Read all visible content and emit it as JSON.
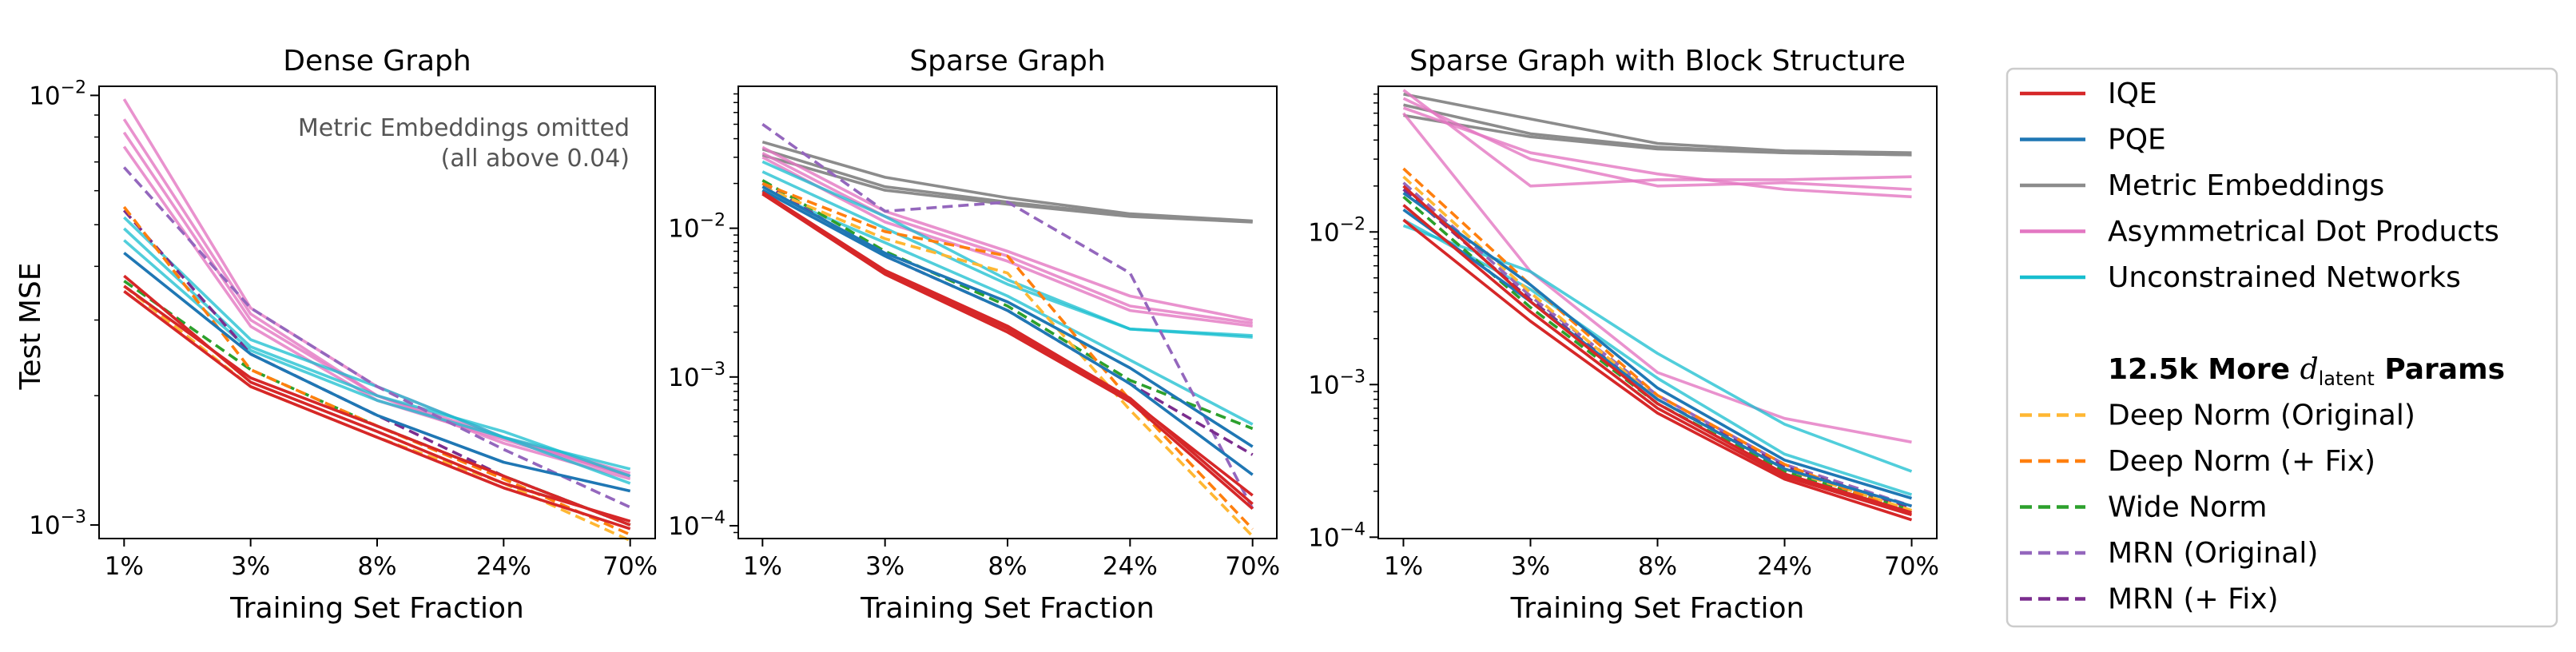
{
  "figure": {
    "xlabel": "Training Set Fraction",
    "ylabel": "Test MSE"
  },
  "colors": {
    "IQE": "#d62728",
    "PQE": "#1f77b4",
    "Metric Embeddings": "#8c8c8c",
    "Asymmetrical Dot Products": "#e377c2",
    "Unconstrained Networks": "#17becf",
    "Deep Norm (Original)": "#ffb733",
    "Deep Norm (+ Fix)": "#ff7f0e",
    "Wide Norm": "#2ca02c",
    "MRN (Original)": "#9467bd",
    "MRN (+ Fix)": "#7b2d8e"
  },
  "legend": {
    "main": [
      {
        "label": "IQE",
        "key": "IQE",
        "dash": false
      },
      {
        "label": "PQE",
        "key": "PQE",
        "dash": false
      },
      {
        "label": "Metric Embeddings",
        "key": "Metric Embeddings",
        "dash": false
      },
      {
        "label": "Asymmetrical Dot Products",
        "key": "Asymmetrical Dot Products",
        "dash": false
      },
      {
        "label": "Unconstrained Networks",
        "key": "Unconstrained Networks",
        "dash": false
      }
    ],
    "section_title_prefix": "12.5k More ",
    "section_title_sym": "d",
    "section_title_sub": "latent",
    "section_title_suffix": " Params",
    "extra": [
      {
        "label": "Deep Norm (Original)",
        "key": "Deep Norm (Original)",
        "dash": true
      },
      {
        "label": "Deep Norm (+ Fix)",
        "key": "Deep Norm (+ Fix)",
        "dash": true
      },
      {
        "label": "Wide Norm",
        "key": "Wide Norm",
        "dash": true
      },
      {
        "label": "MRN (Original)",
        "key": "MRN (Original)",
        "dash": true
      },
      {
        "label": "MRN (+ Fix)",
        "key": "MRN (+ Fix)",
        "dash": true
      }
    ]
  },
  "chart_data": [
    {
      "type": "line",
      "title": "Dense Graph",
      "xlabel": "Training Set Fraction",
      "ylabel": "Test MSE",
      "x_ticks": [
        "1%",
        "3%",
        "8%",
        "24%",
        "70%"
      ],
      "y_scale": "log",
      "ylim": [
        0.00093,
        0.0105
      ],
      "y_ticks": [
        0.001,
        0.01
      ],
      "y_tick_labels": [
        {
          "base": "10",
          "exp": "−3"
        },
        {
          "base": "10",
          "exp": "−2"
        }
      ],
      "annotation": [
        "Metric Embeddings omitted",
        "(all above 0.04)"
      ],
      "series": [
        {
          "group": "IQE",
          "values": [
            0.0035,
            0.0021,
            0.0016,
            0.00122,
            0.00098
          ]
        },
        {
          "group": "IQE",
          "values": [
            0.0038,
            0.00215,
            0.00165,
            0.00125,
            0.00102
          ]
        },
        {
          "group": "IQE",
          "values": [
            0.0036,
            0.0022,
            0.0017,
            0.0013,
            0.001
          ]
        },
        {
          "group": "PQE",
          "values": [
            0.0043,
            0.0025,
            0.0018,
            0.0014,
            0.0012
          ]
        },
        {
          "group": "Asymmetrical Dot Products",
          "values": [
            0.0098,
            0.0032,
            0.0021,
            0.0016,
            0.0013
          ]
        },
        {
          "group": "Asymmetrical Dot Products",
          "values": [
            0.0088,
            0.0031,
            0.002,
            0.00155,
            0.00128
          ]
        },
        {
          "group": "Asymmetrical Dot Products",
          "values": [
            0.0082,
            0.003,
            0.002,
            0.0016,
            0.00132
          ]
        },
        {
          "group": "Asymmetrical Dot Products",
          "values": [
            0.0076,
            0.0029,
            0.00195,
            0.00158,
            0.0013
          ]
        },
        {
          "group": "Unconstrained Networks",
          "values": [
            0.0052,
            0.0027,
            0.0021,
            0.0016,
            0.00135
          ]
        },
        {
          "group": "Unconstrained Networks",
          "values": [
            0.0049,
            0.0026,
            0.002,
            0.00165,
            0.0013
          ]
        },
        {
          "group": "Unconstrained Networks",
          "values": [
            0.0046,
            0.00255,
            0.00195,
            0.0016,
            0.00125
          ]
        },
        {
          "group": "Deep Norm (Original)",
          "values": [
            0.0036,
            0.0021,
            0.0016,
            0.00125,
            0.00092
          ]
        },
        {
          "group": "Deep Norm (+ Fix)",
          "values": [
            0.0055,
            0.0023,
            0.0017,
            0.00128,
            0.00095
          ]
        },
        {
          "group": "Wide Norm",
          "values": [
            0.0037,
            0.0023,
            0.0017,
            0.0013,
            0.001
          ]
        },
        {
          "group": "MRN (Original)",
          "values": [
            0.0068,
            0.0032,
            0.0021,
            0.0015,
            0.0011
          ]
        },
        {
          "group": "MRN (+ Fix)",
          "values": [
            0.0054,
            0.0025,
            0.0018,
            0.0013,
            0.001
          ]
        }
      ]
    },
    {
      "type": "line",
      "title": "Sparse Graph",
      "xlabel": "Training Set Fraction",
      "x_ticks": [
        "1%",
        "3%",
        "8%",
        "24%",
        "70%"
      ],
      "y_scale": "log",
      "ylim": [
        8.2e-05,
        0.09
      ],
      "y_ticks": [
        0.0001,
        0.001,
        0.01
      ],
      "y_tick_labels": [
        {
          "base": "10",
          "exp": "−4"
        },
        {
          "base": "10",
          "exp": "−3"
        },
        {
          "base": "10",
          "exp": "−2"
        }
      ],
      "series": [
        {
          "group": "Metric Embeddings",
          "values": [
            0.038,
            0.022,
            0.016,
            0.0125,
            0.0112
          ]
        },
        {
          "group": "Metric Embeddings",
          "values": [
            0.034,
            0.019,
            0.015,
            0.0122,
            0.0111
          ]
        },
        {
          "group": "Metric Embeddings",
          "values": [
            0.031,
            0.018,
            0.0145,
            0.012,
            0.011
          ]
        },
        {
          "group": "Asymmetrical Dot Products",
          "values": [
            0.035,
            0.013,
            0.007,
            0.0035,
            0.0024
          ]
        },
        {
          "group": "Asymmetrical Dot Products",
          "values": [
            0.032,
            0.012,
            0.0065,
            0.003,
            0.0023
          ]
        },
        {
          "group": "Asymmetrical Dot Products",
          "values": [
            0.03,
            0.011,
            0.006,
            0.0028,
            0.0022
          ]
        },
        {
          "group": "Unconstrained Networks",
          "values": [
            0.028,
            0.012,
            0.0045,
            0.0021,
            0.0019
          ]
        },
        {
          "group": "Unconstrained Networks",
          "values": [
            0.024,
            0.01,
            0.0042,
            0.0021,
            0.00185
          ]
        },
        {
          "group": "Unconstrained Networks",
          "values": [
            0.018,
            0.008,
            0.0035,
            0.0013,
            0.00048
          ]
        },
        {
          "group": "PQE",
          "values": [
            0.019,
            0.0068,
            0.0032,
            0.00115,
            0.00034
          ]
        },
        {
          "group": "PQE",
          "values": [
            0.018,
            0.0065,
            0.0028,
            0.0009,
            0.00022
          ]
        },
        {
          "group": "IQE",
          "values": [
            0.017,
            0.005,
            0.0021,
            0.0007,
            0.00016
          ]
        },
        {
          "group": "IQE",
          "values": [
            0.0175,
            0.0052,
            0.0022,
            0.00072,
            0.00014
          ]
        },
        {
          "group": "IQE",
          "values": [
            0.017,
            0.0049,
            0.002,
            0.00068,
            0.00013
          ]
        },
        {
          "group": "Deep Norm (Original)",
          "values": [
            0.019,
            0.0085,
            0.005,
            0.0006,
            8.5e-05
          ]
        },
        {
          "group": "Deep Norm (+ Fix)",
          "values": [
            0.02,
            0.0095,
            0.0065,
            0.0007,
            9.5e-05
          ]
        },
        {
          "group": "Wide Norm",
          "values": [
            0.021,
            0.007,
            0.003,
            0.00095,
            0.00045
          ]
        },
        {
          "group": "MRN (Original)",
          "values": [
            0.05,
            0.013,
            0.015,
            0.005,
            0.00013
          ]
        },
        {
          "group": "MRN (+ Fix)",
          "values": [
            0.02,
            0.0065,
            0.0028,
            0.0009,
            0.0003
          ]
        }
      ]
    },
    {
      "type": "line",
      "title": "Sparse Graph with Block Structure",
      "xlabel": "Training Set Fraction",
      "x_ticks": [
        "1%",
        "3%",
        "8%",
        "24%",
        "70%"
      ],
      "y_scale": "log",
      "ylim": [
        9.8e-05,
        0.09
      ],
      "y_ticks": [
        0.0001,
        0.001,
        0.01
      ],
      "y_tick_labels": [
        {
          "base": "10",
          "exp": "−4"
        },
        {
          "base": "10",
          "exp": "−3"
        },
        {
          "base": "10",
          "exp": "−2"
        }
      ],
      "series": [
        {
          "group": "Metric Embeddings",
          "values": [
            0.08,
            0.055,
            0.038,
            0.034,
            0.033
          ]
        },
        {
          "group": "Metric Embeddings",
          "values": [
            0.068,
            0.044,
            0.036,
            0.033,
            0.032
          ]
        },
        {
          "group": "Metric Embeddings",
          "values": [
            0.058,
            0.042,
            0.035,
            0.033,
            0.032
          ]
        },
        {
          "group": "Asymmetrical Dot Products",
          "values": [
            0.085,
            0.02,
            0.022,
            0.022,
            0.023
          ]
        },
        {
          "group": "Asymmetrical Dot Products",
          "values": [
            0.075,
            0.03,
            0.02,
            0.021,
            0.019
          ]
        },
        {
          "group": "Asymmetrical Dot Products",
          "values": [
            0.065,
            0.033,
            0.024,
            0.019,
            0.017
          ]
        },
        {
          "group": "Asymmetrical Dot Products",
          "values": [
            0.06,
            0.0055,
            0.0012,
            0.0006,
            0.00042
          ]
        },
        {
          "group": "Unconstrained Networks",
          "values": [
            0.011,
            0.0055,
            0.0016,
            0.00055,
            0.00027
          ]
        },
        {
          "group": "Unconstrained Networks",
          "values": [
            0.012,
            0.0042,
            0.0011,
            0.00035,
            0.00019
          ]
        },
        {
          "group": "PQE",
          "values": [
            0.018,
            0.0045,
            0.00095,
            0.00032,
            0.00018
          ]
        },
        {
          "group": "PQE",
          "values": [
            0.014,
            0.0035,
            0.0008,
            0.00028,
            0.00016
          ]
        },
        {
          "group": "IQE",
          "values": [
            0.012,
            0.0026,
            0.00065,
            0.00024,
            0.00013
          ]
        },
        {
          "group": "IQE",
          "values": [
            0.015,
            0.003,
            0.0007,
            0.00025,
            0.00014
          ]
        },
        {
          "group": "IQE",
          "values": [
            0.02,
            0.0035,
            0.00075,
            0.00026,
            0.000145
          ]
        },
        {
          "group": "Deep Norm (Original)",
          "values": [
            0.023,
            0.004,
            0.0008,
            0.00028,
            0.00015
          ]
        },
        {
          "group": "Deep Norm (+ Fix)",
          "values": [
            0.026,
            0.0045,
            0.00085,
            0.0003,
            0.00014
          ]
        },
        {
          "group": "Wide Norm",
          "values": [
            0.017,
            0.0032,
            0.00075,
            0.00027,
            0.00015
          ]
        },
        {
          "group": "MRN (Original)",
          "values": [
            0.021,
            0.0038,
            0.00085,
            0.0003,
            0.00016
          ]
        },
        {
          "group": "MRN (+ Fix)",
          "values": [
            0.019,
            0.0036,
            0.0008,
            0.00029,
            0.000155
          ]
        }
      ]
    }
  ]
}
